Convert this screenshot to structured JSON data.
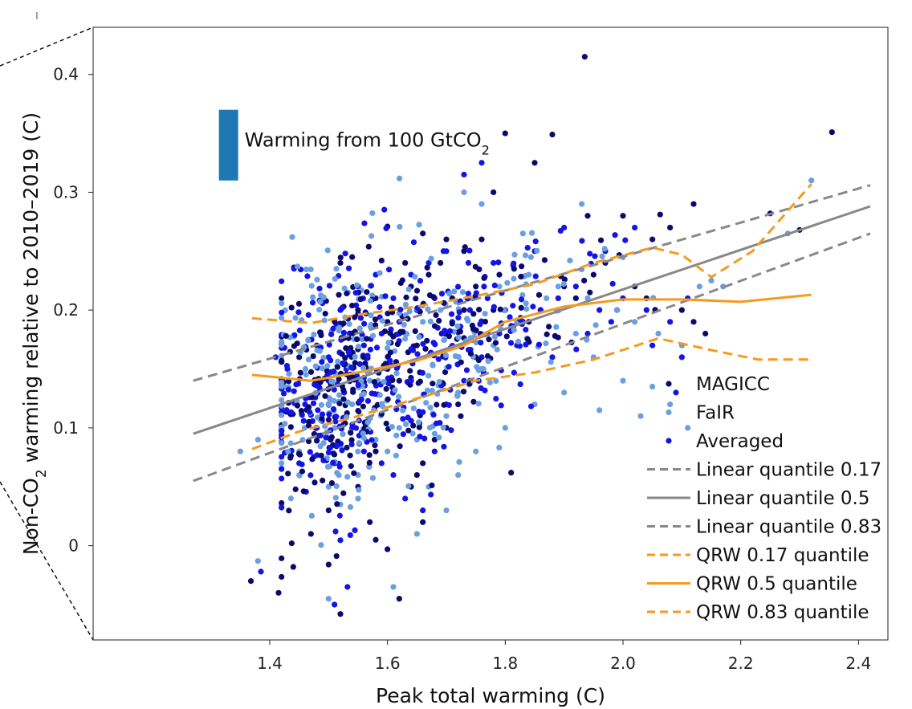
{
  "chart_data": {
    "type": "scatter",
    "xlabel": "Peak total warming (C)",
    "ylabel": "Non-CO2 warming relative to 2010–2019 (C)",
    "ylabel_parts": {
      "pre": "Non-CO",
      "sub": "2",
      "post": " warming relative to 2010–2019 (C)"
    },
    "xlim": [
      1.1,
      2.45
    ],
    "ylim": [
      -0.08,
      0.44
    ],
    "x_ticks": [
      1.4,
      1.6,
      1.8,
      2.0,
      2.2,
      2.4
    ],
    "x_tick_labels": [
      "1.4",
      "1.6",
      "1.8",
      "2.0",
      "2.2",
      "2.4"
    ],
    "y_ticks": [
      0,
      0.1,
      0.2,
      0.3,
      0.4
    ],
    "y_tick_labels": [
      "0",
      "0.1",
      "0.2",
      "0.3",
      "0.4"
    ],
    "annotation": {
      "text_pre": "Warming from 100 GtCO",
      "text_sub": "2",
      "bar_color": "#1f77b4",
      "bar_x": 1.33,
      "bar_y_range": [
        0.31,
        0.37
      ]
    },
    "colors": {
      "MAGICC": "#0a0a6e",
      "FaIR": "#6a9fe0",
      "Averaged": "#1414e6",
      "linear": "#888888",
      "qrw": "#f59a1f"
    },
    "scatter_series": [
      {
        "name": "MAGICC",
        "points": [
          [
            1.368,
            -0.03
          ],
          [
            1.415,
            -0.04
          ],
          [
            1.44,
            -0.018
          ],
          [
            1.5,
            -0.016
          ],
          [
            1.52,
            -0.058
          ],
          [
            1.6,
            -0.003
          ],
          [
            1.62,
            -0.045
          ],
          [
            1.57,
            0.02
          ],
          [
            1.55,
            0.05
          ],
          [
            1.58,
            0.08
          ],
          [
            1.65,
            0.06
          ],
          [
            1.66,
            0.07
          ],
          [
            1.68,
            0.09
          ],
          [
            1.7,
            0.1
          ],
          [
            1.72,
            0.12
          ],
          [
            1.74,
            0.14
          ],
          [
            1.75,
            0.16
          ],
          [
            1.77,
            0.18
          ],
          [
            1.78,
            0.2
          ],
          [
            1.79,
            0.23
          ],
          [
            1.8,
            0.35
          ],
          [
            1.88,
            0.349
          ],
          [
            1.935,
            0.415
          ],
          [
            2.355,
            0.351
          ],
          [
            1.85,
            0.325
          ],
          [
            1.73,
            0.25
          ],
          [
            1.76,
            0.26
          ],
          [
            1.81,
            0.062
          ],
          [
            1.55,
            0.2
          ],
          [
            1.58,
            0.21
          ],
          [
            1.6,
            0.19
          ],
          [
            1.62,
            0.18
          ],
          [
            1.64,
            0.22
          ],
          [
            1.67,
            0.23
          ],
          [
            1.69,
            0.24
          ],
          [
            1.71,
            0.21
          ],
          [
            1.73,
            0.2
          ],
          [
            1.75,
            0.22
          ],
          [
            1.9,
            0.22
          ],
          [
            1.95,
            0.23
          ],
          [
            2.0,
            0.28
          ],
          [
            2.05,
            0.26
          ],
          [
            2.1,
            0.2
          ],
          [
            2.12,
            0.19
          ],
          [
            2.08,
            0.27
          ],
          [
            2.25,
            0.282
          ],
          [
            2.3,
            0.268
          ],
          [
            1.45,
            0.16
          ],
          [
            1.48,
            0.17
          ],
          [
            1.5,
            0.12
          ],
          [
            1.53,
            0.11
          ],
          [
            1.56,
            0.13
          ],
          [
            1.6,
            0.15
          ],
          [
            1.62,
            0.14
          ],
          [
            1.65,
            0.17
          ],
          [
            1.84,
            0.19
          ],
          [
            1.86,
            0.2
          ],
          [
            1.92,
            0.21
          ],
          [
            1.97,
            0.24
          ],
          [
            2.02,
            0.22
          ],
          [
            1.66,
            0.265
          ],
          [
            1.7,
            0.26
          ],
          [
            1.78,
            0.3
          ],
          [
            1.52,
            0.24
          ],
          [
            1.54,
            0.245
          ],
          [
            1.59,
            0.242
          ],
          [
            1.63,
            0.24
          ],
          [
            2.12,
            0.29
          ],
          [
            1.94,
            0.28
          ],
          [
            1.99,
            0.2
          ],
          [
            2.04,
            0.21
          ],
          [
            2.14,
            0.18
          ],
          [
            1.5,
            0.03
          ],
          [
            1.47,
            0.01
          ],
          [
            1.58,
            0.005
          ],
          [
            1.64,
            0.05
          ],
          [
            1.66,
            0.02
          ],
          [
            1.51,
            0.07
          ]
        ]
      },
      {
        "name": "FaIR",
        "points": [
          [
            1.38,
            -0.013
          ],
          [
            1.5,
            -0.045
          ],
          [
            1.61,
            -0.035
          ],
          [
            1.65,
            0.01
          ],
          [
            1.67,
            0.05
          ],
          [
            1.52,
            0.035
          ],
          [
            1.55,
            0.06
          ],
          [
            1.58,
            0.09
          ],
          [
            1.62,
            0.1
          ],
          [
            1.7,
            0.11
          ],
          [
            1.72,
            0.13
          ],
          [
            1.76,
            0.15
          ],
          [
            1.78,
            0.17
          ],
          [
            1.82,
            0.19
          ],
          [
            1.87,
            0.21
          ],
          [
            1.92,
            0.18
          ],
          [
            1.95,
            0.16
          ],
          [
            2.0,
            0.14
          ],
          [
            2.03,
            0.11
          ],
          [
            2.08,
            0.12
          ],
          [
            2.11,
            0.1
          ],
          [
            2.32,
            0.31
          ],
          [
            2.28,
            0.265
          ],
          [
            2.17,
            0.22
          ],
          [
            1.83,
            0.265
          ],
          [
            1.73,
            0.3
          ],
          [
            1.76,
            0.29
          ],
          [
            1.93,
            0.29
          ],
          [
            1.42,
            0.07
          ],
          [
            1.45,
            0.08
          ],
          [
            1.48,
            0.09
          ],
          [
            1.51,
            0.1
          ],
          [
            1.54,
            0.12
          ],
          [
            1.57,
            0.14
          ],
          [
            1.6,
            0.16
          ],
          [
            1.63,
            0.18
          ],
          [
            1.66,
            0.19
          ],
          [
            1.69,
            0.2
          ],
          [
            1.74,
            0.21
          ],
          [
            1.79,
            0.22
          ],
          [
            1.84,
            0.23
          ],
          [
            1.89,
            0.22
          ],
          [
            1.94,
            0.21
          ],
          [
            1.99,
            0.2
          ],
          [
            2.02,
            0.19
          ],
          [
            2.06,
            0.18
          ],
          [
            2.1,
            0.17
          ],
          [
            2.13,
            0.22
          ],
          [
            1.45,
            0.06
          ],
          [
            1.5,
            0.05
          ],
          [
            1.55,
            0.04
          ],
          [
            1.6,
            0.08
          ],
          [
            1.65,
            0.09
          ],
          [
            1.7,
            0.03
          ],
          [
            1.72,
            0.06
          ],
          [
            1.75,
            0.08
          ],
          [
            1.8,
            0.1
          ],
          [
            1.85,
            0.12
          ],
          [
            1.9,
            0.13
          ],
          [
            1.96,
            0.115
          ],
          [
            2.05,
            0.135
          ],
          [
            1.38,
            0.09
          ],
          [
            1.35,
            0.08
          ]
        ]
      },
      {
        "name": "Averaged",
        "points": [
          [
            1.385,
            -0.022
          ],
          [
            1.51,
            -0.05
          ],
          [
            1.45,
            0.07
          ],
          [
            1.48,
            0.1
          ],
          [
            1.5,
            0.14
          ],
          [
            1.53,
            0.15
          ],
          [
            1.56,
            0.17
          ],
          [
            1.59,
            0.18
          ],
          [
            1.62,
            0.19
          ],
          [
            1.65,
            0.2
          ],
          [
            1.68,
            0.21
          ],
          [
            1.71,
            0.19
          ],
          [
            1.74,
            0.2
          ],
          [
            1.77,
            0.21
          ],
          [
            1.8,
            0.2
          ],
          [
            1.83,
            0.19
          ],
          [
            1.86,
            0.2
          ],
          [
            1.89,
            0.21
          ],
          [
            1.92,
            0.22
          ],
          [
            1.96,
            0.2
          ],
          [
            2.0,
            0.21
          ],
          [
            2.04,
            0.2
          ],
          [
            2.08,
            0.19
          ],
          [
            2.11,
            0.21
          ],
          [
            2.1,
            0.16
          ],
          [
            2.09,
            0.13
          ],
          [
            1.76,
            0.325
          ],
          [
            1.73,
            0.315
          ],
          [
            1.54,
            0.1
          ],
          [
            1.56,
            0.08
          ],
          [
            1.59,
            0.07
          ],
          [
            1.61,
            0.06
          ],
          [
            1.63,
            0.04
          ],
          [
            1.66,
            0.03
          ],
          [
            1.68,
            0.08
          ],
          [
            1.7,
            0.12
          ],
          [
            1.73,
            0.14
          ],
          [
            1.76,
            0.16
          ],
          [
            1.79,
            0.18
          ],
          [
            1.82,
            0.17
          ],
          [
            1.88,
            0.16
          ],
          [
            1.94,
            0.18
          ],
          [
            1.98,
            0.19
          ],
          [
            2.02,
            0.27
          ],
          [
            2.05,
            0.17
          ],
          [
            1.52,
            0.2
          ],
          [
            1.55,
            0.22
          ],
          [
            1.58,
            0.23
          ],
          [
            1.61,
            0.21
          ],
          [
            1.64,
            0.23
          ],
          [
            1.67,
            0.24
          ],
          [
            1.7,
            0.25
          ],
          [
            1.78,
            0.24
          ],
          [
            1.85,
            0.25
          ],
          [
            1.9,
            0.27
          ],
          [
            1.97,
            0.25
          ],
          [
            1.5,
            0.16
          ],
          [
            1.46,
            0.12
          ],
          [
            1.43,
            0.15
          ],
          [
            1.41,
            0.16
          ]
        ]
      }
    ],
    "lines": [
      {
        "name": "Linear quantile 0.17",
        "color": "#888888",
        "dash": "dashed",
        "x": [
          1.27,
          2.42
        ],
        "y": [
          0.055,
          0.265
        ]
      },
      {
        "name": "Linear quantile 0.5",
        "color": "#888888",
        "dash": "solid",
        "x": [
          1.27,
          2.42
        ],
        "y": [
          0.095,
          0.288
        ]
      },
      {
        "name": "Linear quantile 0.83",
        "color": "#888888",
        "dash": "dashed",
        "x": [
          1.27,
          2.42
        ],
        "y": [
          0.14,
          0.306
        ]
      },
      {
        "name": "QRW 0.17 quantile",
        "color": "#f59a1f",
        "dash": "dashed",
        "x": [
          1.37,
          1.45,
          1.55,
          1.65,
          1.75,
          1.85,
          1.95,
          2.06,
          2.15,
          2.23,
          2.32
        ],
        "y": [
          0.082,
          0.097,
          0.11,
          0.125,
          0.14,
          0.147,
          0.158,
          0.176,
          0.166,
          0.158,
          0.158
        ]
      },
      {
        "name": "QRW 0.5 quantile",
        "color": "#f59a1f",
        "dash": "solid",
        "x": [
          1.37,
          1.47,
          1.55,
          1.65,
          1.73,
          1.8,
          1.9,
          2.0,
          2.1,
          2.2,
          2.32
        ],
        "y": [
          0.145,
          0.14,
          0.147,
          0.157,
          0.17,
          0.19,
          0.203,
          0.209,
          0.209,
          0.207,
          0.213
        ]
      },
      {
        "name": "QRW 0.83 quantile",
        "color": "#f59a1f",
        "dash": "dashed",
        "x": [
          1.37,
          1.47,
          1.55,
          1.65,
          1.75,
          1.85,
          1.95,
          2.05,
          2.1,
          2.15,
          2.22,
          2.32
        ],
        "y": [
          0.193,
          0.189,
          0.196,
          0.203,
          0.212,
          0.222,
          0.24,
          0.253,
          0.247,
          0.228,
          0.25,
          0.307
        ]
      }
    ],
    "legend": {
      "location": "lower-right",
      "entries": [
        {
          "label": "MAGICC",
          "kind": "marker",
          "color": "#0a0a6e"
        },
        {
          "label": "FaIR",
          "kind": "marker",
          "color": "#6a9fe0"
        },
        {
          "label": "Averaged",
          "kind": "marker",
          "color": "#1414e6"
        },
        {
          "label": "Linear quantile 0.17",
          "kind": "line",
          "color": "#888888",
          "dash": "dashed"
        },
        {
          "label": "Linear quantile 0.5",
          "kind": "line",
          "color": "#888888",
          "dash": "solid"
        },
        {
          "label": "Linear quantile 0.83",
          "kind": "line",
          "color": "#888888",
          "dash": "dashed"
        },
        {
          "label": "QRW 0.17 quantile",
          "kind": "line",
          "color": "#f59a1f",
          "dash": "dashed"
        },
        {
          "label": "QRW 0.5 quantile",
          "kind": "line",
          "color": "#f59a1f",
          "dash": "solid"
        },
        {
          "label": "QRW 0.83 quantile",
          "kind": "line",
          "color": "#f59a1f",
          "dash": "dashed"
        }
      ]
    }
  }
}
